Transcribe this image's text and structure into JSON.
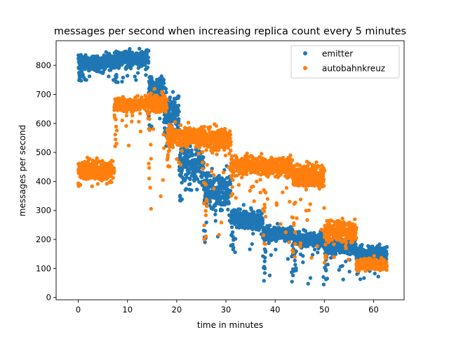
{
  "chart_data": {
    "type": "scatter",
    "title": "messages per second when increasing replica count every 5 minutes",
    "xlabel": "time in minutes",
    "ylabel": "messages per second",
    "xlim": [
      -4.5,
      66.2
    ],
    "ylim": [
      -8,
      885
    ],
    "xticks": [
      0,
      10,
      20,
      30,
      40,
      50,
      60
    ],
    "yticks": [
      0,
      100,
      200,
      300,
      400,
      500,
      600,
      700,
      800
    ],
    "legend_position": "upper-right",
    "series": [
      {
        "name": "emitter",
        "color": "#1f77b4",
        "segments": [
          {
            "x": [
              0.0,
              7.3
            ],
            "mean": 810,
            "spread": 25,
            "low_tail": 740
          },
          {
            "x": [
              7.3,
              14.3
            ],
            "mean": 820,
            "spread": 30,
            "low_tail": 740
          },
          {
            "x": [
              14.3,
              17.5
            ],
            "mean": 720,
            "spread": 40,
            "low_tail": 580
          },
          {
            "x": [
              17.5,
              20.5
            ],
            "mean": 640,
            "spread": 60,
            "low_tail": 520
          },
          {
            "x": [
              20.5,
              25.5
            ],
            "mean": 460,
            "spread": 70,
            "low_tail": 330
          },
          {
            "x": [
              25.5,
              31.0
            ],
            "mean": 370,
            "spread": 70,
            "low_tail": 160
          },
          {
            "x": [
              31.0,
              37.5
            ],
            "mean": 270,
            "spread": 35,
            "low_tail": 150
          },
          {
            "x": [
              37.5,
              43.5
            ],
            "mean": 220,
            "spread": 25,
            "low_tail": 50
          },
          {
            "x": [
              43.5,
              50.0
            ],
            "mean": 200,
            "spread": 25,
            "low_tail": 40
          },
          {
            "x": [
              50.0,
              56.5
            ],
            "mean": 175,
            "spread": 25,
            "low_tail": 60
          },
          {
            "x": [
              56.5,
              62.7
            ],
            "mean": 150,
            "spread": 25,
            "low_tail": 60
          }
        ]
      },
      {
        "name": "autobahnkreuz",
        "color": "#ff7f0e",
        "segments": [
          {
            "x": [
              0.0,
              7.3
            ],
            "mean": 440,
            "spread": 35,
            "low_tail": 380
          },
          {
            "x": [
              7.3,
              14.3
            ],
            "mean": 665,
            "spread": 25,
            "low_tail": 480
          },
          {
            "x": [
              14.3,
              18.0
            ],
            "mean": 670,
            "spread": 35,
            "low_tail": 300
          },
          {
            "x": [
              18.0,
              25.5
            ],
            "mean": 555,
            "spread": 35,
            "low_tail": 440
          },
          {
            "x": [
              25.5,
              31.0
            ],
            "mean": 545,
            "spread": 40,
            "low_tail": 200
          },
          {
            "x": [
              31.0,
              37.5
            ],
            "mean": 455,
            "spread": 30,
            "low_tail": 330
          },
          {
            "x": [
              37.5,
              43.5
            ],
            "mean": 450,
            "spread": 30,
            "low_tail": 150
          },
          {
            "x": [
              43.5,
              50.0
            ],
            "mean": 420,
            "spread": 40,
            "low_tail": 120
          },
          {
            "x": [
              50.0,
              56.5
            ],
            "mean": 230,
            "spread": 40,
            "low_tail": 100
          },
          {
            "x": [
              56.5,
              62.7
            ],
            "mean": 115,
            "spread": 20,
            "low_tail": 90
          }
        ]
      }
    ]
  }
}
